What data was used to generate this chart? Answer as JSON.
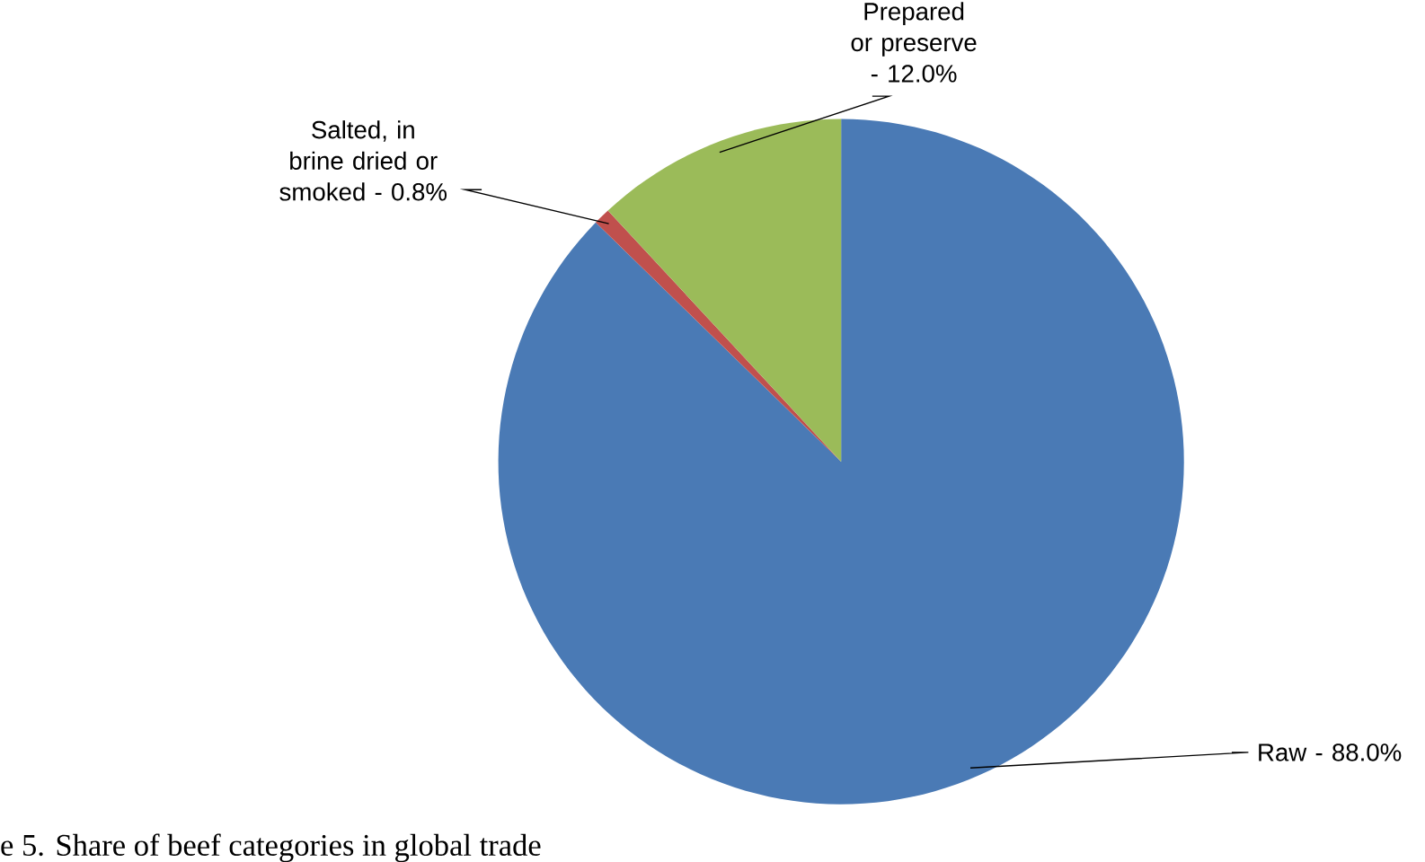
{
  "chart_data": {
    "type": "pie",
    "title": "e 5. Share of beef categories in global trade",
    "categories": [
      "Raw -",
      "Salted, in brine dried or smoked -",
      "Prepared or preserve -"
    ],
    "values": [
      88.0,
      0.8,
      12.0
    ],
    "value_labels": [
      "88.0%",
      "0.8%",
      "12.0%"
    ],
    "colors": [
      "#4a7ab5",
      "#c0504d",
      "#9bbb59"
    ]
  }
}
